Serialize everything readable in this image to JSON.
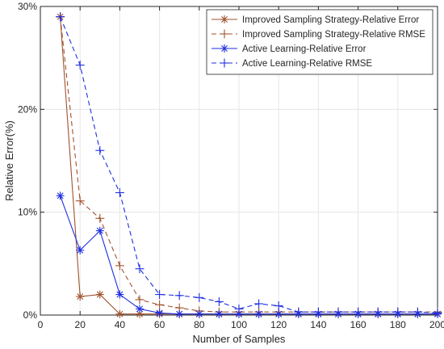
{
  "chart_data": {
    "type": "line",
    "xlabel": "Number of Samples",
    "ylabel": "Relative Error(%)",
    "xlim": [
      0,
      200
    ],
    "ylim": [
      0,
      30
    ],
    "x_ticks": [
      0,
      20,
      40,
      60,
      80,
      100,
      120,
      140,
      160,
      180,
      200
    ],
    "y_ticks": [
      {
        "value": 0,
        "label": "0%"
      },
      {
        "value": 10,
        "label": "10%"
      },
      {
        "value": 20,
        "label": "20%"
      },
      {
        "value": 30,
        "label": "30%"
      }
    ],
    "grid": true,
    "legend_position": "top-right",
    "x": [
      10,
      20,
      30,
      40,
      50,
      60,
      70,
      80,
      90,
      100,
      110,
      120,
      130,
      140,
      150,
      160,
      170,
      180,
      190,
      200
    ],
    "series": [
      {
        "name": "Improved Sampling Strategy-Relative Error",
        "color": "#A0522D",
        "line_style": "solid",
        "marker": "asterisk",
        "values": [
          29.0,
          1.8,
          2.0,
          0.1,
          0.1,
          0.1,
          0.1,
          0.1,
          0.1,
          0.1,
          0.1,
          0.1,
          0.1,
          0.1,
          0.1,
          0.1,
          0.1,
          0.1,
          0.1,
          0.1
        ]
      },
      {
        "name": "Improved Sampling Strategy-Relative RMSE",
        "color": "#A0522D",
        "line_style": "dashed",
        "marker": "plus",
        "values": [
          29.0,
          11.1,
          9.4,
          4.8,
          1.5,
          1.0,
          0.7,
          0.4,
          0.3,
          0.3,
          0.3,
          0.3,
          0.3,
          0.3,
          0.3,
          0.3,
          0.3,
          0.3,
          0.3,
          0.3
        ]
      },
      {
        "name": "Active Learning-Relative Error",
        "color": "#1F2FE0",
        "line_style": "solid",
        "marker": "asterisk",
        "values": [
          11.6,
          6.3,
          8.2,
          2.0,
          0.6,
          0.2,
          0.1,
          0.1,
          0.1,
          0.1,
          0.1,
          0.1,
          0.1,
          0.1,
          0.1,
          0.1,
          0.1,
          0.1,
          0.1,
          0.1
        ]
      },
      {
        "name": "Active Learning-Relative RMSE",
        "color": "#1F2FE0",
        "line_style": "dashed",
        "marker": "plus",
        "values": [
          29.0,
          24.3,
          16.0,
          11.9,
          4.5,
          2.0,
          1.9,
          1.7,
          1.3,
          0.6,
          1.1,
          0.9,
          0.3,
          0.3,
          0.3,
          0.3,
          0.3,
          0.3,
          0.3,
          0.2
        ]
      }
    ]
  }
}
